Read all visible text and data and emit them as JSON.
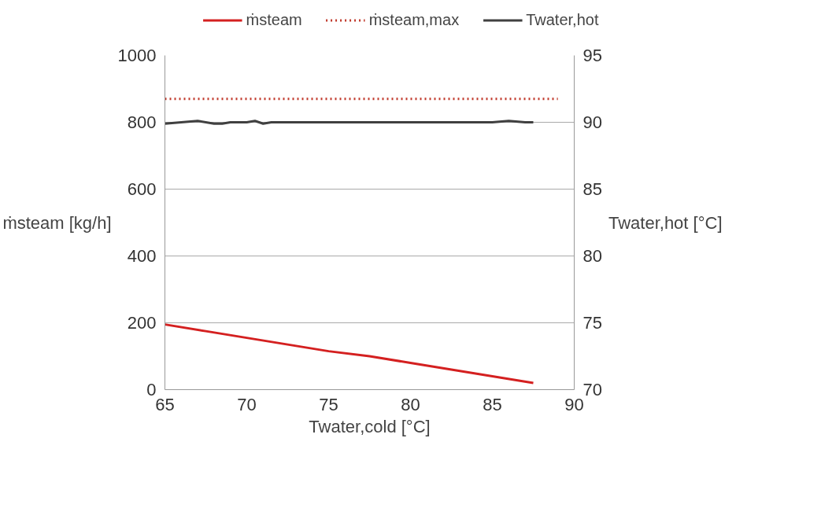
{
  "chart_data": {
    "type": "line",
    "xlabel": "Twater,cold [°C]",
    "ylabel": "ṁsteam [kg/h]",
    "y2label": "Twater,hot [°C]",
    "xlim": [
      65,
      90
    ],
    "xticks": [
      65,
      70,
      75,
      80,
      85,
      90
    ],
    "ylim": [
      0,
      1000
    ],
    "yticks": [
      0,
      200,
      400,
      600,
      800,
      1000
    ],
    "y2lim": [
      70,
      95
    ],
    "y2ticks": [
      70,
      75,
      80,
      85,
      90,
      95
    ],
    "grid": "y",
    "legend": "top",
    "series": [
      {
        "name": "ṁsteam",
        "color": "#d42020",
        "line_style": "solid",
        "x": [
          65,
          67.5,
          70,
          72.5,
          75,
          77.5,
          80,
          82.5,
          85,
          87.5
        ],
        "values": [
          195,
          175,
          155,
          135,
          115,
          100,
          80,
          60,
          40,
          20
        ]
      },
      {
        "name": "ṁsteam,max",
        "color": "#c0392b",
        "line_style": "dotted",
        "x": [
          65,
          89
        ],
        "values": [
          870,
          870
        ]
      },
      {
        "name": "Twater,hot",
        "color": "#404040",
        "line_style": "solid",
        "axis": "y2",
        "x": [
          65,
          66,
          67,
          68,
          68.5,
          69,
          70,
          70.5,
          71,
          71.5,
          72,
          73,
          74,
          75,
          76,
          77,
          78,
          79,
          80,
          81,
          82,
          83,
          84,
          85,
          86,
          87,
          87.5
        ],
        "values": [
          89.9,
          90.0,
          90.1,
          89.9,
          89.9,
          90.0,
          90.0,
          90.1,
          89.9,
          90.0,
          90.0,
          90.0,
          90.0,
          90.0,
          90.0,
          90.0,
          90.0,
          90.0,
          90.0,
          90.0,
          90.0,
          90.0,
          90.0,
          90.0,
          90.1,
          90.0,
          90.0
        ]
      }
    ]
  }
}
